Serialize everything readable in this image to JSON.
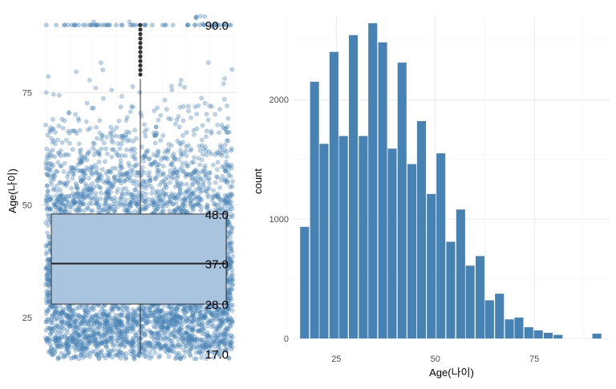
{
  "chart_data": [
    {
      "type": "box",
      "panel": "left",
      "ylabel": "Age(나이)",
      "ylim": [
        15,
        92
      ],
      "y_ticks": [
        25,
        50,
        75
      ],
      "grid": true,
      "box": {
        "min": 17.0,
        "q1": 28.0,
        "median": 37.0,
        "q3": 48.0,
        "max": 90.0,
        "whisker_high": 78.0
      },
      "stat_labels": [
        "90.0",
        "48.0",
        "37.0",
        "28.0",
        "17.0"
      ],
      "outliers": [
        79,
        80,
        81,
        82,
        83,
        84,
        85,
        86,
        87,
        88,
        89,
        90
      ],
      "point_color": "#4682b4",
      "box_fill": "#a9c4de"
    },
    {
      "type": "bar",
      "panel": "right",
      "xlabel": "Age(나이)",
      "ylabel": "count",
      "xlim": [
        14,
        94
      ],
      "ylim": [
        0,
        2700
      ],
      "x_ticks": [
        25,
        50,
        75
      ],
      "y_ticks": [
        0,
        1000,
        2000
      ],
      "grid": true,
      "bar_color": "#4682b4",
      "bin_width": 2.46,
      "bin_centers": [
        17.0,
        19.5,
        21.9,
        24.4,
        26.8,
        29.3,
        31.8,
        34.2,
        36.7,
        39.1,
        41.6,
        44.1,
        46.5,
        49.0,
        51.4,
        53.9,
        56.4,
        58.8,
        61.3,
        63.7,
        66.2,
        68.7,
        71.1,
        73.6,
        76.0,
        78.5,
        81.0,
        83.4,
        85.9,
        88.3,
        90.8
      ],
      "values": [
        935,
        2150,
        1630,
        2400,
        1695,
        2540,
        1695,
        2640,
        2480,
        1590,
        2310,
        1460,
        1820,
        1210,
        1550,
        810,
        1080,
        610,
        690,
        320,
        375,
        160,
        175,
        95,
        68,
        48,
        30,
        0,
        0,
        0,
        40
      ]
    }
  ]
}
